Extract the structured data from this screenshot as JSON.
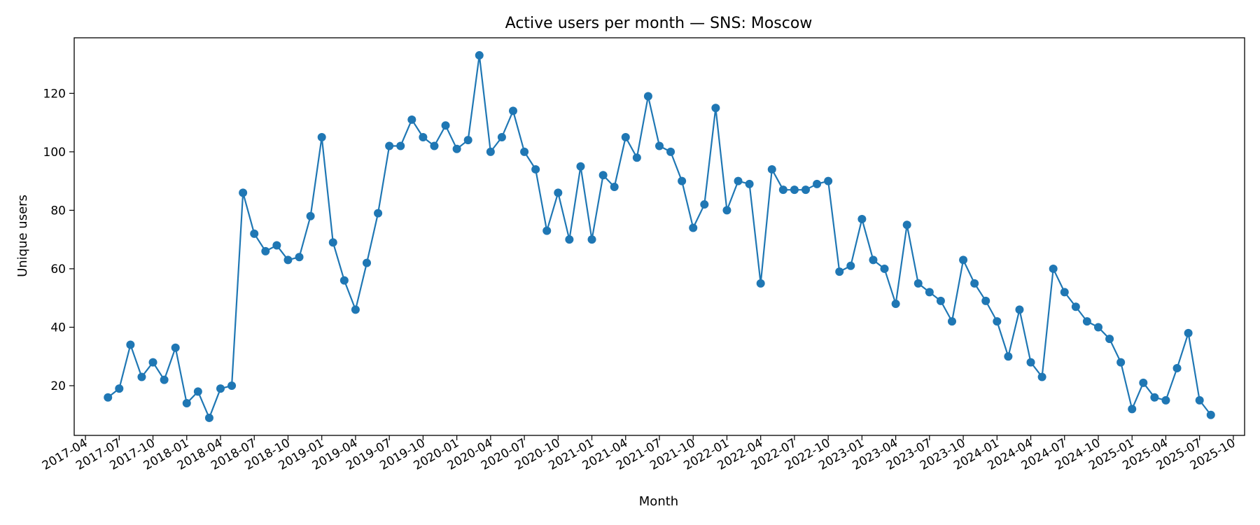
{
  "chart_data": {
    "type": "line",
    "title": "Active users per month — SNS: Moscow",
    "xlabel": "Month",
    "ylabel": "Unique users",
    "x_start": "2017-06",
    "x_ticks": [
      "2017-04",
      "2017-07",
      "2017-10",
      "2018-01",
      "2018-04",
      "2018-07",
      "2018-10",
      "2019-01",
      "2019-04",
      "2019-07",
      "2019-10",
      "2020-01",
      "2020-04",
      "2020-07",
      "2020-10",
      "2021-01",
      "2021-04",
      "2021-07",
      "2021-10",
      "2022-01",
      "2022-04",
      "2022-07",
      "2022-10",
      "2023-01",
      "2023-04",
      "2023-07",
      "2023-10",
      "2024-01",
      "2024-04",
      "2024-07",
      "2024-10",
      "2025-01",
      "2025-04",
      "2025-07",
      "2025-10"
    ],
    "y_ticks": [
      20,
      40,
      60,
      80,
      100,
      120
    ],
    "xlim": [
      "2017-03",
      "2025-11"
    ],
    "ylim": [
      3,
      139
    ],
    "grid": false,
    "color": "#1f77b4",
    "series": [
      {
        "values": [
          16,
          19,
          34,
          23,
          28,
          22,
          33,
          14,
          18,
          9,
          19,
          20,
          86,
          72,
          66,
          68,
          63,
          64,
          78,
          105,
          69,
          56,
          46,
          62,
          79,
          102,
          102,
          111,
          105,
          102,
          109,
          101,
          104,
          133,
          100,
          105,
          114,
          100,
          94,
          73,
          86,
          70,
          95,
          70,
          92,
          88,
          105,
          98,
          119,
          102,
          100,
          90,
          74,
          82,
          115,
          80,
          90,
          89,
          55,
          94,
          87,
          87,
          87,
          89,
          90,
          59,
          61,
          77,
          63,
          60,
          48,
          75,
          55,
          52,
          49,
          42,
          63,
          55,
          49,
          42,
          30,
          46,
          28,
          23,
          60,
          52,
          47,
          42,
          40,
          36,
          28,
          12,
          21,
          16,
          15,
          26,
          38,
          15,
          10
        ]
      }
    ]
  }
}
